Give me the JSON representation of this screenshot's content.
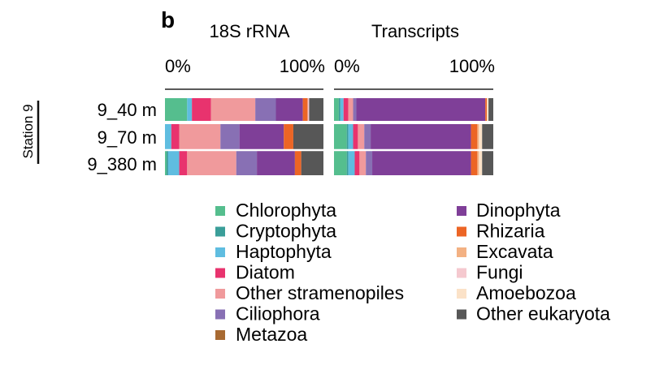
{
  "panel_label": "b",
  "station_label": "Station 9",
  "chart_data": [
    {
      "type": "bar",
      "orientation": "horizontal",
      "stacked": true,
      "title": "18S rRNA",
      "tick_labels": [
        "0%",
        "100%"
      ],
      "xlim": [
        0,
        100
      ],
      "categories": [
        "9_40 m",
        "9_70 m",
        "9_380 m"
      ],
      "series": [
        {
          "name": "Chlorophyta",
          "values": [
            14.0,
            0.0,
            1.0
          ]
        },
        {
          "name": "Cryptophyta",
          "values": [
            0.0,
            0.0,
            1.0
          ]
        },
        {
          "name": "Haptophyta",
          "values": [
            3.0,
            4.0,
            7.0
          ]
        },
        {
          "name": "Diatom",
          "values": [
            12.0,
            5.0,
            5.0
          ]
        },
        {
          "name": "Other stramenopiles",
          "values": [
            28.0,
            26.0,
            31.0
          ]
        },
        {
          "name": "Ciliophora",
          "values": [
            13.0,
            12.0,
            13.0
          ]
        },
        {
          "name": "Metazoa",
          "values": [
            0.0,
            0.0,
            0.0
          ]
        },
        {
          "name": "Dinophyta",
          "values": [
            17.0,
            28.0,
            24.0
          ]
        },
        {
          "name": "Rhizaria",
          "values": [
            3.0,
            6.0,
            4.0
          ]
        },
        {
          "name": "Excavata",
          "values": [
            0.0,
            0.0,
            0.0
          ]
        },
        {
          "name": "Fungi",
          "values": [
            1.0,
            0.0,
            0.0
          ]
        },
        {
          "name": "Amoebozoa",
          "values": [
            0.0,
            0.0,
            0.0
          ]
        },
        {
          "name": "Other eukaryota",
          "values": [
            9.0,
            19.0,
            14.0
          ]
        }
      ]
    },
    {
      "type": "bar",
      "orientation": "horizontal",
      "stacked": true,
      "title": "Transcripts",
      "tick_labels": [
        "0%",
        "100%"
      ],
      "xlim": [
        0,
        100
      ],
      "categories": [
        "9_40 m",
        "9_70 m",
        "9_380 m"
      ],
      "series": [
        {
          "name": "Chlorophyta",
          "values": [
            3.0,
            8.0,
            8.0
          ]
        },
        {
          "name": "Cryptophyta",
          "values": [
            1.0,
            1.0,
            1.0
          ]
        },
        {
          "name": "Haptophyta",
          "values": [
            2.0,
            3.0,
            4.0
          ]
        },
        {
          "name": "Diatom",
          "values": [
            3.0,
            3.0,
            3.0
          ]
        },
        {
          "name": "Other stramenopiles",
          "values": [
            3.0,
            4.0,
            4.0
          ]
        },
        {
          "name": "Ciliophora",
          "values": [
            2.0,
            4.0,
            4.0
          ]
        },
        {
          "name": "Metazoa",
          "values": [
            0.0,
            0.0,
            0.0
          ]
        },
        {
          "name": "Dinophyta",
          "values": [
            81.0,
            63.0,
            62.0
          ]
        },
        {
          "name": "Rhizaria",
          "values": [
            1.0,
            4.0,
            4.0
          ]
        },
        {
          "name": "Excavata",
          "values": [
            0.0,
            1.0,
            1.0
          ]
        },
        {
          "name": "Fungi",
          "values": [
            0.0,
            0.0,
            0.0
          ]
        },
        {
          "name": "Amoebozoa",
          "values": [
            1.0,
            2.0,
            2.0
          ]
        },
        {
          "name": "Other eukaryota",
          "values": [
            3.0,
            7.0,
            7.0
          ]
        }
      ]
    }
  ],
  "legend": [
    {
      "name": "Chlorophyta",
      "color": "#55be8e"
    },
    {
      "name": "Cryptophyta",
      "color": "#3a9e99"
    },
    {
      "name": "Haptophyta",
      "color": "#5fbde0"
    },
    {
      "name": "Diatom",
      "color": "#e8336e"
    },
    {
      "name": "Other stramenopiles",
      "color": "#f09a9c"
    },
    {
      "name": "Ciliophora",
      "color": "#8870b4"
    },
    {
      "name": "Metazoa",
      "color": "#a86a32"
    },
    {
      "name": "Dinophyta",
      "color": "#7f3f98"
    },
    {
      "name": "Rhizaria",
      "color": "#ec6525"
    },
    {
      "name": "Excavata",
      "color": "#f3b183"
    },
    {
      "name": "Fungi",
      "color": "#f5c9cf"
    },
    {
      "name": "Amoebozoa",
      "color": "#fbe2c8"
    },
    {
      "name": "Other eukaryota",
      "color": "#575757"
    }
  ]
}
